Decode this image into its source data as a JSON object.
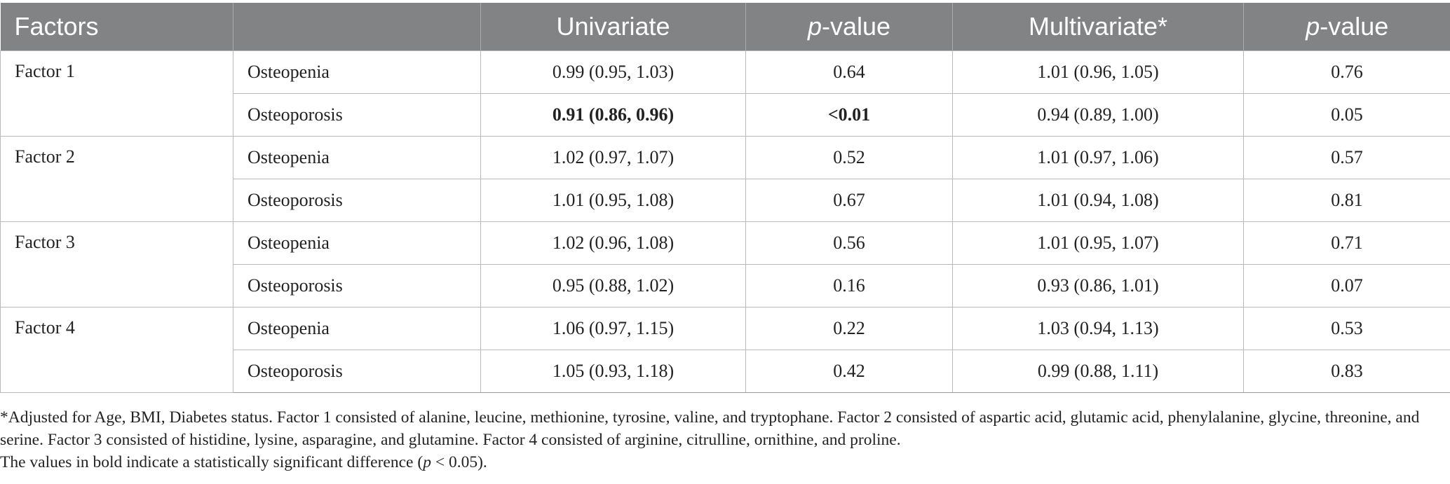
{
  "table": {
    "headers": {
      "factors": "Factors",
      "group": "",
      "univariate": "Univariate",
      "p_italic": "p",
      "p_suffix": "-value",
      "multivariate": "Multivariate*"
    },
    "factors": [
      {
        "name": "Factor 1",
        "rows": [
          {
            "status": "Osteopenia",
            "univariate": "0.99 (0.95, 1.03)",
            "p1": "0.64",
            "multivariate": "1.01 (0.96, 1.05)",
            "p2": "0.76"
          },
          {
            "status": "Osteoporosis",
            "univariate": "0.91 (0.86, 0.96)",
            "p1": "<0.01",
            "multivariate": "0.94 (0.89, 1.00)",
            "p2": "0.05"
          }
        ]
      },
      {
        "name": "Factor 2",
        "rows": [
          {
            "status": "Osteopenia",
            "univariate": "1.02 (0.97, 1.07)",
            "p1": "0.52",
            "multivariate": "1.01 (0.97, 1.06)",
            "p2": "0.57"
          },
          {
            "status": "Osteoporosis",
            "univariate": "1.01 (0.95, 1.08)",
            "p1": "0.67",
            "multivariate": "1.01 (0.94, 1.08)",
            "p2": "0.81"
          }
        ]
      },
      {
        "name": "Factor 3",
        "rows": [
          {
            "status": "Osteopenia",
            "univariate": "1.02 (0.96, 1.08)",
            "p1": "0.56",
            "multivariate": "1.01 (0.95, 1.07)",
            "p2": "0.71"
          },
          {
            "status": "Osteoporosis",
            "univariate": "0.95 (0.88, 1.02)",
            "p1": "0.16",
            "multivariate": "0.93 (0.86, 1.01)",
            "p2": "0.07"
          }
        ]
      },
      {
        "name": "Factor 4",
        "rows": [
          {
            "status": "Osteopenia",
            "univariate": "1.06 (0.97, 1.15)",
            "p1": "0.22",
            "multivariate": "1.03 (0.94, 1.13)",
            "p2": "0.53"
          },
          {
            "status": "Osteoporosis",
            "univariate": "1.05 (0.93, 1.18)",
            "p1": "0.42",
            "multivariate": "0.99 (0.88, 1.11)",
            "p2": "0.83"
          }
        ]
      }
    ]
  },
  "footnotes": {
    "adjusted": "*Adjusted for Age, BMI, Diabetes status. Factor 1 consisted of alanine, leucine, methionine, tyrosine, valine, and tryptophane. Factor 2 consisted of aspartic acid, glutamic acid, phenylalanine, glycine, threonine, and serine. Factor 3 consisted of histidine, lysine, asparagine, and glutamine. Factor 4 consisted of arginine, citrulline, ornithine, and proline.",
    "bold_prefix": "The values in bold indicate a statistically significant difference (",
    "bold_p": "p",
    "bold_suffix": " < 0.05)."
  }
}
